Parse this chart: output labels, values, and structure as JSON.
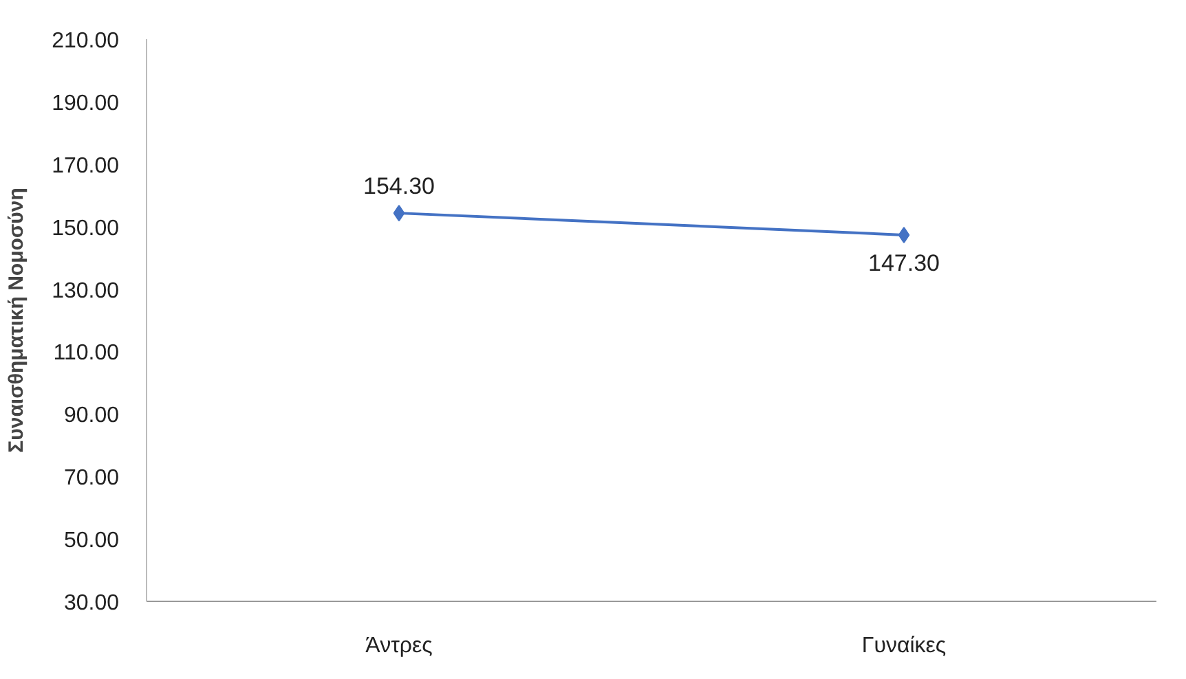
{
  "chart_data": {
    "type": "line",
    "ylabel": "Συναισθηματική Νομοσύνη",
    "categories": [
      "Άντρες",
      "Γυναίκες"
    ],
    "series": [
      {
        "color": "#4472c4",
        "values": [
          154.3,
          147.3
        ],
        "value_labels": [
          "154.30",
          "147.30"
        ]
      }
    ],
    "ylim": [
      30,
      210
    ],
    "yticks": [
      {
        "value": 30,
        "label": "30.00"
      },
      {
        "value": 50,
        "label": "50.00"
      },
      {
        "value": 70,
        "label": "70.00"
      },
      {
        "value": 90,
        "label": "90.00"
      },
      {
        "value": 110,
        "label": "110.00"
      },
      {
        "value": 130,
        "label": "130.00"
      },
      {
        "value": 150,
        "label": "150.00"
      },
      {
        "value": 170,
        "label": "170.00"
      },
      {
        "value": 190,
        "label": "190.00"
      },
      {
        "value": 210,
        "label": "210.00"
      }
    ],
    "marker": "diamond",
    "line_style": "solid",
    "grid": false
  }
}
